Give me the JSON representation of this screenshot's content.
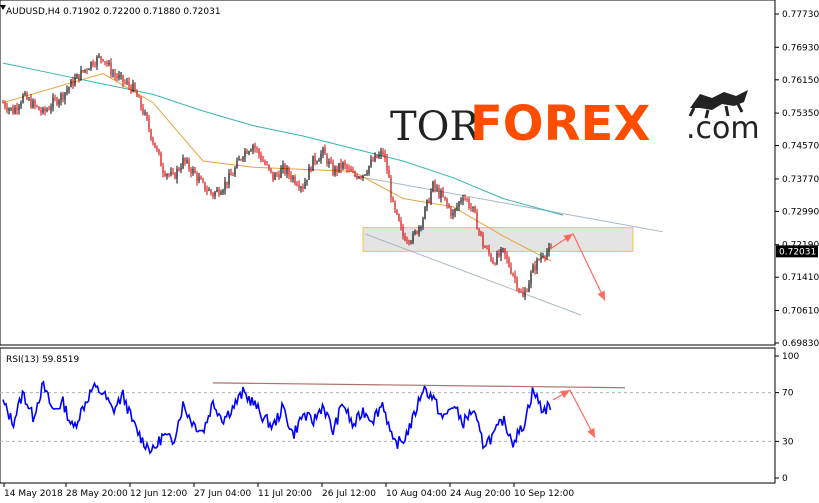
{
  "header": {
    "symbol_line": "AUDUSD,H4  0.71902 0.72200 0.71880 0.72031"
  },
  "indicator": {
    "label": "RSI(13) 59.8519"
  },
  "logo": {
    "part1": "TOR",
    "part2": "FOREX",
    "part3": ".com"
  },
  "colors": {
    "candle_up": "#000000",
    "candle_down": "#d40000",
    "ma_fast": "#e8a33d",
    "ma_slow": "#3bb3b3",
    "rsi_line": "#0000ff",
    "channel": "#a8b8c4",
    "zone_fill": "#d8d8d8",
    "zone_border": "#f0c050",
    "forecast_arrow": "#ff6b5e",
    "rsi_trend": "#b07070",
    "logo_accent": "#ff4d00"
  },
  "chart_data": [
    {
      "type": "candlestick",
      "symbol": "AUDUSD",
      "timeframe": "H4",
      "ohlc_last": {
        "open": 0.71902,
        "high": 0.722,
        "low": 0.7188,
        "close": 0.72031
      },
      "current_price_label": "0.72031",
      "ylim": [
        0.6983,
        0.7773
      ],
      "y_ticks": [
        "0.77730",
        "0.76930",
        "0.76150",
        "0.75350",
        "0.74570",
        "0.73770",
        "0.72990",
        "0.72190",
        "0.71410",
        "0.70610",
        "0.69830"
      ],
      "x_ticks": [
        "14 May 2018",
        "28 May 20:00",
        "12 Jun 12:00",
        "27 Jun 04:00",
        "11 Jul 20:00",
        "26 Jul 12:00",
        "10 Aug 04:00",
        "24 Aug 20:00",
        "10 Sep 12:00"
      ],
      "trend": [
        [
          0,
          0.756
        ],
        [
          10,
          0.754
        ],
        [
          20,
          0.7575
        ],
        [
          30,
          0.7555
        ],
        [
          40,
          0.7535
        ],
        [
          50,
          0.756
        ],
        [
          60,
          0.758
        ],
        [
          70,
          0.761
        ],
        [
          80,
          0.7635
        ],
        [
          90,
          0.766
        ],
        [
          100,
          0.767
        ],
        [
          110,
          0.763
        ],
        [
          120,
          0.761
        ],
        [
          130,
          0.7595
        ],
        [
          140,
          0.754
        ],
        [
          150,
          0.747
        ],
        [
          160,
          0.74
        ],
        [
          170,
          0.738
        ],
        [
          180,
          0.742
        ],
        [
          190,
          0.7395
        ],
        [
          200,
          0.736
        ],
        [
          210,
          0.734
        ],
        [
          220,
          0.736
        ],
        [
          230,
          0.739
        ],
        [
          240,
          0.744
        ],
        [
          250,
          0.746
        ],
        [
          260,
          0.742
        ],
        [
          270,
          0.738
        ],
        [
          280,
          0.74
        ],
        [
          290,
          0.738
        ],
        [
          300,
          0.736
        ],
        [
          310,
          0.742
        ],
        [
          320,
          0.744
        ],
        [
          330,
          0.7395
        ],
        [
          340,
          0.741
        ],
        [
          350,
          0.7385
        ],
        [
          360,
          0.739
        ],
        [
          370,
          0.742
        ],
        [
          380,
          0.744
        ],
        [
          385,
          0.739
        ],
        [
          390,
          0.731
        ],
        [
          400,
          0.724
        ],
        [
          410,
          0.7235
        ],
        [
          420,
          0.7285
        ],
        [
          430,
          0.736
        ],
        [
          440,
          0.733
        ],
        [
          450,
          0.729
        ],
        [
          460,
          0.734
        ],
        [
          470,
          0.73
        ],
        [
          480,
          0.722
        ],
        [
          490,
          0.718
        ],
        [
          500,
          0.72
        ],
        [
          510,
          0.715
        ],
        [
          520,
          0.709
        ],
        [
          530,
          0.716
        ],
        [
          540,
          0.72
        ],
        [
          548,
          0.7203
        ]
      ],
      "ma_fast": [
        [
          0,
          0.756
        ],
        [
          100,
          0.763
        ],
        [
          150,
          0.756
        ],
        [
          200,
          0.742
        ],
        [
          250,
          0.7405
        ],
        [
          300,
          0.74
        ],
        [
          350,
          0.7395
        ],
        [
          400,
          0.733
        ],
        [
          450,
          0.731
        ],
        [
          500,
          0.724
        ],
        [
          548,
          0.718
        ]
      ],
      "ma_slow": [
        [
          0,
          0.7655
        ],
        [
          50,
          0.763
        ],
        [
          100,
          0.7605
        ],
        [
          150,
          0.758
        ],
        [
          200,
          0.754
        ],
        [
          250,
          0.7505
        ],
        [
          300,
          0.748
        ],
        [
          350,
          0.745
        ],
        [
          400,
          0.742
        ],
        [
          450,
          0.738
        ],
        [
          500,
          0.733
        ],
        [
          560,
          0.729
        ]
      ],
      "channel_upper": [
        [
          350,
          0.7385
        ],
        [
          660,
          0.725
        ]
      ],
      "channel_lower": [
        [
          362,
          0.7245
        ],
        [
          578,
          0.705
        ]
      ],
      "zone": {
        "x_start": 360,
        "x_end": 630,
        "top": 0.726,
        "bottom": 0.7203
      },
      "forecast": [
        [
          548,
          0.721
        ],
        [
          570,
          0.7245
        ],
        [
          602,
          0.7085
        ]
      ]
    },
    {
      "type": "line",
      "name": "RSI(13)",
      "last_value": 59.8519,
      "ylim": [
        0,
        100
      ],
      "y_ticks": [
        "100",
        "70",
        "30",
        "0"
      ],
      "levels": [
        70,
        30
      ],
      "values": [
        [
          0,
          62
        ],
        [
          10,
          45
        ],
        [
          20,
          70
        ],
        [
          30,
          50
        ],
        [
          40,
          76
        ],
        [
          50,
          55
        ],
        [
          60,
          62
        ],
        [
          70,
          40
        ],
        [
          80,
          58
        ],
        [
          90,
          74
        ],
        [
          100,
          70
        ],
        [
          110,
          55
        ],
        [
          120,
          68
        ],
        [
          130,
          45
        ],
        [
          140,
          30
        ],
        [
          150,
          22
        ],
        [
          160,
          35
        ],
        [
          170,
          30
        ],
        [
          180,
          60
        ],
        [
          190,
          45
        ],
        [
          200,
          38
        ],
        [
          210,
          62
        ],
        [
          220,
          48
        ],
        [
          230,
          58
        ],
        [
          240,
          70
        ],
        [
          250,
          62
        ],
        [
          260,
          50
        ],
        [
          270,
          42
        ],
        [
          280,
          58
        ],
        [
          290,
          35
        ],
        [
          300,
          52
        ],
        [
          310,
          46
        ],
        [
          320,
          60
        ],
        [
          330,
          38
        ],
        [
          340,
          62
        ],
        [
          350,
          42
        ],
        [
          360,
          55
        ],
        [
          370,
          48
        ],
        [
          380,
          62
        ],
        [
          390,
          28
        ],
        [
          400,
          30
        ],
        [
          410,
          48
        ],
        [
          420,
          74
        ],
        [
          430,
          66
        ],
        [
          440,
          48
        ],
        [
          450,
          60
        ],
        [
          460,
          45
        ],
        [
          470,
          56
        ],
        [
          480,
          28
        ],
        [
          490,
          34
        ],
        [
          500,
          48
        ],
        [
          510,
          30
        ],
        [
          520,
          42
        ],
        [
          530,
          72
        ],
        [
          540,
          55
        ],
        [
          548,
          60
        ]
      ],
      "trendline": [
        [
          213,
          78
        ],
        [
          625,
          74
        ]
      ],
      "forecast": [
        [
          553,
          64
        ],
        [
          570,
          72
        ],
        [
          595,
          33
        ]
      ]
    }
  ]
}
